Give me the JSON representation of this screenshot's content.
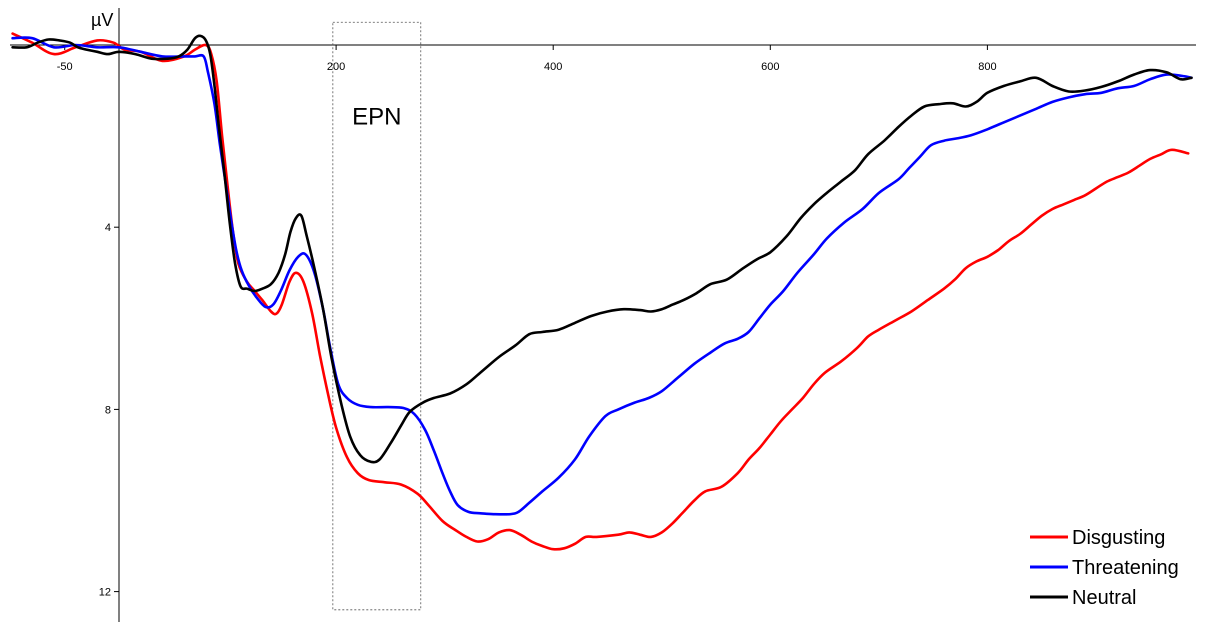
{
  "chart_data": {
    "type": "line",
    "ylabel": "µV",
    "xlim": [
      -100,
      990
    ],
    "ylim": [
      0,
      12.6
    ],
    "y_inverted": true,
    "x_ticks": [
      -50,
      200,
      400,
      600,
      800
    ],
    "y_ticks": [
      4,
      8,
      12
    ],
    "grid": false,
    "legend_position": "bottom-right",
    "annotation": {
      "label": "EPN",
      "x_range": [
        197,
        278
      ],
      "y_range": [
        -0.5,
        12.4
      ]
    },
    "series": [
      {
        "name": "Disgusting",
        "color": "#ff0000",
        "points": [
          [
            -98,
            -0.25
          ],
          [
            -80,
            -0.05
          ],
          [
            -60,
            0.2
          ],
          [
            -40,
            0.05
          ],
          [
            -20,
            -0.1
          ],
          [
            -5,
            -0.05
          ],
          [
            5,
            0.1
          ],
          [
            20,
            0.15
          ],
          [
            40,
            0.35
          ],
          [
            60,
            0.25
          ],
          [
            70,
            0.1
          ],
          [
            80,
            0.0
          ],
          [
            85,
            0.2
          ],
          [
            90,
            0.8
          ],
          [
            95,
            2.0
          ],
          [
            100,
            3.1
          ],
          [
            105,
            4.1
          ],
          [
            110,
            4.8
          ],
          [
            118,
            5.2
          ],
          [
            125,
            5.4
          ],
          [
            132,
            5.6
          ],
          [
            140,
            5.85
          ],
          [
            145,
            5.9
          ],
          [
            150,
            5.7
          ],
          [
            157,
            5.2
          ],
          [
            163,
            5.0
          ],
          [
            170,
            5.2
          ],
          [
            178,
            5.9
          ],
          [
            185,
            6.8
          ],
          [
            192,
            7.6
          ],
          [
            200,
            8.4
          ],
          [
            210,
            9.05
          ],
          [
            220,
            9.4
          ],
          [
            230,
            9.55
          ],
          [
            245,
            9.6
          ],
          [
            260,
            9.65
          ],
          [
            275,
            9.85
          ],
          [
            285,
            10.1
          ],
          [
            298,
            10.45
          ],
          [
            310,
            10.65
          ],
          [
            320,
            10.8
          ],
          [
            330,
            10.9
          ],
          [
            340,
            10.85
          ],
          [
            350,
            10.7
          ],
          [
            360,
            10.65
          ],
          [
            370,
            10.75
          ],
          [
            380,
            10.9
          ],
          [
            390,
            11.0
          ],
          [
            400,
            11.07
          ],
          [
            410,
            11.05
          ],
          [
            420,
            10.95
          ],
          [
            430,
            10.8
          ],
          [
            440,
            10.8
          ],
          [
            460,
            10.75
          ],
          [
            470,
            10.7
          ],
          [
            480,
            10.75
          ],
          [
            490,
            10.8
          ],
          [
            500,
            10.7
          ],
          [
            510,
            10.5
          ],
          [
            520,
            10.25
          ],
          [
            530,
            10.0
          ],
          [
            540,
            9.8
          ],
          [
            555,
            9.7
          ],
          [
            570,
            9.4
          ],
          [
            580,
            9.1
          ],
          [
            590,
            8.85
          ],
          [
            600,
            8.55
          ],
          [
            610,
            8.25
          ],
          [
            620,
            8.0
          ],
          [
            630,
            7.75
          ],
          [
            640,
            7.45
          ],
          [
            650,
            7.2
          ],
          [
            665,
            6.95
          ],
          [
            680,
            6.65
          ],
          [
            690,
            6.4
          ],
          [
            700,
            6.25
          ],
          [
            715,
            6.05
          ],
          [
            730,
            5.85
          ],
          [
            745,
            5.6
          ],
          [
            760,
            5.35
          ],
          [
            770,
            5.15
          ],
          [
            780,
            4.9
          ],
          [
            790,
            4.75
          ],
          [
            800,
            4.65
          ],
          [
            810,
            4.5
          ],
          [
            820,
            4.3
          ],
          [
            830,
            4.15
          ],
          [
            840,
            3.95
          ],
          [
            850,
            3.75
          ],
          [
            860,
            3.6
          ],
          [
            870,
            3.5
          ],
          [
            880,
            3.4
          ],
          [
            890,
            3.3
          ],
          [
            900,
            3.15
          ],
          [
            910,
            3.0
          ],
          [
            920,
            2.9
          ],
          [
            930,
            2.8
          ],
          [
            940,
            2.65
          ],
          [
            950,
            2.5
          ],
          [
            960,
            2.4
          ],
          [
            970,
            2.3
          ],
          [
            985,
            2.38
          ]
        ]
      },
      {
        "name": "Threatening",
        "color": "#0000ff",
        "points": [
          [
            -98,
            -0.15
          ],
          [
            -80,
            -0.15
          ],
          [
            -60,
            0.05
          ],
          [
            -40,
            0.0
          ],
          [
            -20,
            0.05
          ],
          [
            0,
            0.05
          ],
          [
            20,
            0.15
          ],
          [
            40,
            0.25
          ],
          [
            60,
            0.25
          ],
          [
            70,
            0.25
          ],
          [
            78,
            0.25
          ],
          [
            82,
            0.6
          ],
          [
            88,
            1.3
          ],
          [
            93,
            2.2
          ],
          [
            98,
            3.0
          ],
          [
            103,
            3.8
          ],
          [
            108,
            4.5
          ],
          [
            113,
            4.95
          ],
          [
            120,
            5.3
          ],
          [
            127,
            5.55
          ],
          [
            135,
            5.75
          ],
          [
            142,
            5.7
          ],
          [
            149,
            5.4
          ],
          [
            157,
            4.95
          ],
          [
            165,
            4.65
          ],
          [
            172,
            4.6
          ],
          [
            180,
            5.0
          ],
          [
            188,
            5.8
          ],
          [
            195,
            6.7
          ],
          [
            202,
            7.45
          ],
          [
            210,
            7.75
          ],
          [
            220,
            7.9
          ],
          [
            232,
            7.95
          ],
          [
            248,
            7.95
          ],
          [
            262,
            7.97
          ],
          [
            272,
            8.1
          ],
          [
            282,
            8.45
          ],
          [
            290,
            8.9
          ],
          [
            298,
            9.4
          ],
          [
            305,
            9.8
          ],
          [
            312,
            10.1
          ],
          [
            322,
            10.25
          ],
          [
            333,
            10.28
          ],
          [
            345,
            10.3
          ],
          [
            360,
            10.3
          ],
          [
            368,
            10.25
          ],
          [
            378,
            10.05
          ],
          [
            390,
            9.8
          ],
          [
            405,
            9.5
          ],
          [
            420,
            9.1
          ],
          [
            433,
            8.6
          ],
          [
            448,
            8.15
          ],
          [
            460,
            8.0
          ],
          [
            475,
            7.85
          ],
          [
            488,
            7.75
          ],
          [
            500,
            7.6
          ],
          [
            515,
            7.3
          ],
          [
            530,
            7.0
          ],
          [
            545,
            6.75
          ],
          [
            558,
            6.55
          ],
          [
            570,
            6.45
          ],
          [
            580,
            6.3
          ],
          [
            590,
            6.0
          ],
          [
            600,
            5.7
          ],
          [
            612,
            5.4
          ],
          [
            625,
            5.0
          ],
          [
            640,
            4.6
          ],
          [
            652,
            4.25
          ],
          [
            668,
            3.9
          ],
          [
            685,
            3.6
          ],
          [
            700,
            3.25
          ],
          [
            718,
            2.95
          ],
          [
            728,
            2.7
          ],
          [
            738,
            2.45
          ],
          [
            748,
            2.2
          ],
          [
            760,
            2.1
          ],
          [
            772,
            2.05
          ],
          [
            785,
            1.98
          ],
          [
            800,
            1.85
          ],
          [
            815,
            1.7
          ],
          [
            830,
            1.55
          ],
          [
            845,
            1.4
          ],
          [
            860,
            1.25
          ],
          [
            875,
            1.15
          ],
          [
            890,
            1.08
          ],
          [
            905,
            1.05
          ],
          [
            920,
            0.95
          ],
          [
            935,
            0.9
          ],
          [
            950,
            0.75
          ],
          [
            965,
            0.65
          ],
          [
            980,
            0.68
          ],
          [
            988,
            0.72
          ]
        ]
      },
      {
        "name": "Neutral",
        "color": "#000000",
        "points": [
          [
            -98,
            0.05
          ],
          [
            -85,
            0.05
          ],
          [
            -75,
            -0.05
          ],
          [
            -65,
            -0.12
          ],
          [
            -55,
            -0.1
          ],
          [
            -45,
            -0.05
          ],
          [
            -38,
            0.05
          ],
          [
            -30,
            0.1
          ],
          [
            -20,
            0.15
          ],
          [
            -10,
            0.2
          ],
          [
            0,
            0.15
          ],
          [
            15,
            0.2
          ],
          [
            30,
            0.3
          ],
          [
            45,
            0.3
          ],
          [
            55,
            0.25
          ],
          [
            63,
            0.1
          ],
          [
            70,
            -0.15
          ],
          [
            75,
            -0.2
          ],
          [
            80,
            -0.1
          ],
          [
            84,
            0.2
          ],
          [
            88,
            0.9
          ],
          [
            92,
            1.8
          ],
          [
            97,
            2.8
          ],
          [
            102,
            3.9
          ],
          [
            107,
            4.8
          ],
          [
            112,
            5.3
          ],
          [
            118,
            5.35
          ],
          [
            125,
            5.4
          ],
          [
            132,
            5.35
          ],
          [
            140,
            5.25
          ],
          [
            147,
            5.0
          ],
          [
            153,
            4.6
          ],
          [
            158,
            4.1
          ],
          [
            163,
            3.8
          ],
          [
            168,
            3.75
          ],
          [
            173,
            4.2
          ],
          [
            180,
            4.9
          ],
          [
            188,
            5.8
          ],
          [
            196,
            6.9
          ],
          [
            205,
            7.9
          ],
          [
            213,
            8.6
          ],
          [
            222,
            9.0
          ],
          [
            232,
            9.15
          ],
          [
            240,
            9.1
          ],
          [
            250,
            8.75
          ],
          [
            260,
            8.35
          ],
          [
            268,
            8.05
          ],
          [
            280,
            7.85
          ],
          [
            290,
            7.75
          ],
          [
            305,
            7.65
          ],
          [
            320,
            7.45
          ],
          [
            335,
            7.15
          ],
          [
            350,
            6.85
          ],
          [
            365,
            6.6
          ],
          [
            378,
            6.35
          ],
          [
            390,
            6.3
          ],
          [
            405,
            6.25
          ],
          [
            420,
            6.1
          ],
          [
            435,
            5.95
          ],
          [
            450,
            5.85
          ],
          [
            465,
            5.8
          ],
          [
            480,
            5.82
          ],
          [
            490,
            5.85
          ],
          [
            500,
            5.8
          ],
          [
            510,
            5.7
          ],
          [
            520,
            5.6
          ],
          [
            532,
            5.45
          ],
          [
            545,
            5.25
          ],
          [
            560,
            5.15
          ],
          [
            575,
            4.9
          ],
          [
            588,
            4.7
          ],
          [
            600,
            4.55
          ],
          [
            615,
            4.2
          ],
          [
            628,
            3.8
          ],
          [
            640,
            3.5
          ],
          [
            652,
            3.25
          ],
          [
            665,
            3.0
          ],
          [
            678,
            2.75
          ],
          [
            690,
            2.4
          ],
          [
            705,
            2.1
          ],
          [
            718,
            1.8
          ],
          [
            730,
            1.55
          ],
          [
            742,
            1.35
          ],
          [
            755,
            1.3
          ],
          [
            768,
            1.28
          ],
          [
            780,
            1.35
          ],
          [
            790,
            1.25
          ],
          [
            800,
            1.05
          ],
          [
            815,
            0.9
          ],
          [
            830,
            0.8
          ],
          [
            845,
            0.72
          ],
          [
            860,
            0.9
          ],
          [
            875,
            1.02
          ],
          [
            890,
            1.0
          ],
          [
            905,
            0.92
          ],
          [
            920,
            0.8
          ],
          [
            935,
            0.65
          ],
          [
            950,
            0.55
          ],
          [
            965,
            0.6
          ],
          [
            978,
            0.75
          ],
          [
            988,
            0.72
          ]
        ]
      }
    ]
  }
}
